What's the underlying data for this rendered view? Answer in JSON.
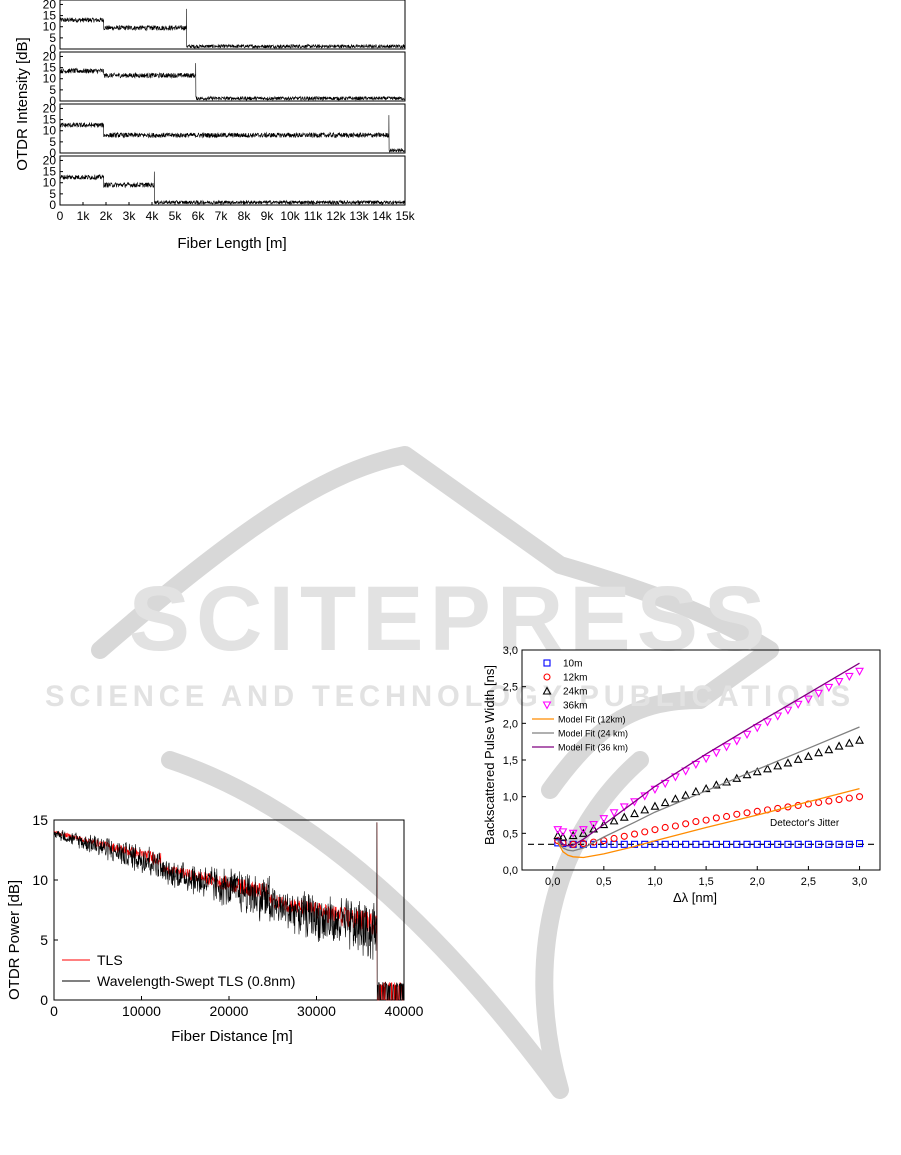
{
  "watermark": {
    "title": "SCITEPRESS",
    "subtitle": "SCIENCE AND TECHNOLOGY PUBLICATIONS"
  },
  "chart_data": [
    {
      "type": "line",
      "subplots": 4,
      "xlabel": "Fiber Length [m]",
      "ylabel": "OTDR Intensity [dB]",
      "xlim": [
        0,
        15000
      ],
      "ylim": [
        0,
        22
      ],
      "x_ticks": [
        0,
        1000,
        2000,
        3000,
        4000,
        5000,
        6000,
        7000,
        8000,
        9000,
        10000,
        11000,
        12000,
        13000,
        14000,
        15000
      ],
      "x_tick_labels": [
        "0",
        "1k",
        "2k",
        "3k",
        "4k",
        "5k",
        "6k",
        "7k",
        "8k",
        "9k",
        "10k",
        "11k",
        "12k",
        "13k",
        "14k",
        "15k"
      ],
      "y_ticks": [
        0,
        5,
        10,
        15,
        20
      ],
      "y_tick_labels": [
        "0",
        "5",
        "10",
        "15",
        "20"
      ],
      "traces": [
        {
          "segments": [
            [
              0,
              1900,
              13
            ],
            [
              1900,
              5500,
              9.5
            ]
          ],
          "end": 5500,
          "spike": 18,
          "noise_floor": 1
        },
        {
          "segments": [
            [
              0,
              1900,
              13.5
            ],
            [
              1900,
              5900,
              11.5
            ]
          ],
          "end": 5900,
          "spike": 17,
          "noise_floor": 1
        },
        {
          "segments": [
            [
              0,
              1900,
              12.5
            ],
            [
              1900,
              14300,
              8
            ]
          ],
          "end": 14300,
          "spike": 17,
          "noise_floor": 1
        },
        {
          "segments": [
            [
              0,
              1900,
              12.5
            ],
            [
              1900,
              4100,
              9
            ]
          ],
          "end": 4100,
          "spike": 15,
          "noise_floor": 1
        }
      ]
    },
    {
      "type": "line",
      "xlabel": "Fiber Distance [m]",
      "ylabel": "OTDR Power [dB]",
      "xlim": [
        0,
        40000
      ],
      "ylim": [
        0,
        15
      ],
      "x_ticks": [
        0,
        10000,
        20000,
        30000,
        40000
      ],
      "x_tick_labels": [
        "0",
        "10000",
        "20000",
        "30000",
        "40000"
      ],
      "y_ticks": [
        0,
        5,
        10,
        15
      ],
      "y_tick_labels": [
        "0",
        "5",
        "10",
        "15"
      ],
      "legend_position": "bottom-left",
      "series": [
        {
          "name": "TLS",
          "color": "#ff0000"
        },
        {
          "name": "Wavelength-Swept TLS (0.8nm)",
          "color": "#000000"
        }
      ],
      "fiber_spans": [
        {
          "x": [
            0,
            12200
          ],
          "y": [
            14,
            11.7
          ]
        },
        {
          "x": [
            12200,
            24600
          ],
          "y": [
            11,
            8.9
          ]
        },
        {
          "x": [
            24600,
            36900
          ],
          "y": [
            8.3,
            6.3
          ]
        }
      ],
      "end_spike": {
        "x": 36900,
        "y": 14.8
      },
      "noise_floor": 1.1
    },
    {
      "type": "scatter",
      "xlabel": "Δλ [nm]",
      "ylabel": "Backscattered Pulse Width [ns]",
      "xlim": [
        -0.3,
        3.2
      ],
      "ylim": [
        0.0,
        3.0
      ],
      "x_ticks": [
        0,
        0.5,
        1,
        1.5,
        2,
        2.5,
        3
      ],
      "x_tick_labels": [
        "0,0",
        "0,5",
        "1,0",
        "1,5",
        "2,0",
        "2,5",
        "3,0"
      ],
      "y_ticks": [
        0,
        0.5,
        1,
        1.5,
        2,
        2.5,
        3
      ],
      "y_tick_labels": [
        "0,0",
        "0,5",
        "1,0",
        "1,5",
        "2,0",
        "2,5",
        "3,0"
      ],
      "legend_position": "top-left",
      "annotation": "Detector's Jitter",
      "jitter_level": 0.35,
      "series": [
        {
          "name": "10m",
          "marker": "square",
          "color": "#0000ff",
          "x": [
            0.05,
            0.1,
            0.2,
            0.3,
            0.4,
            0.5,
            0.6,
            0.7,
            0.8,
            0.9,
            1.0,
            1.1,
            1.2,
            1.3,
            1.4,
            1.5,
            1.6,
            1.7,
            1.8,
            1.9,
            2.0,
            2.1,
            2.2,
            2.3,
            2.4,
            2.5,
            2.6,
            2.7,
            2.8,
            2.9,
            3.0
          ],
          "y": [
            0.37,
            0.36,
            0.35,
            0.35,
            0.35,
            0.35,
            0.35,
            0.35,
            0.35,
            0.35,
            0.35,
            0.35,
            0.35,
            0.35,
            0.35,
            0.35,
            0.35,
            0.35,
            0.35,
            0.35,
            0.35,
            0.35,
            0.35,
            0.35,
            0.35,
            0.35,
            0.35,
            0.35,
            0.35,
            0.35,
            0.36
          ]
        },
        {
          "name": "12km",
          "marker": "circle",
          "color": "#ff0000",
          "x": [
            0.05,
            0.1,
            0.2,
            0.3,
            0.4,
            0.5,
            0.6,
            0.7,
            0.8,
            0.9,
            1.0,
            1.1,
            1.2,
            1.3,
            1.4,
            1.5,
            1.6,
            1.7,
            1.8,
            1.9,
            2.0,
            2.1,
            2.2,
            2.3,
            2.4,
            2.5,
            2.6,
            2.7,
            2.8,
            2.9,
            3.0
          ],
          "y": [
            0.4,
            0.37,
            0.35,
            0.36,
            0.38,
            0.4,
            0.43,
            0.46,
            0.49,
            0.52,
            0.55,
            0.58,
            0.6,
            0.63,
            0.66,
            0.68,
            0.71,
            0.73,
            0.76,
            0.78,
            0.8,
            0.82,
            0.84,
            0.86,
            0.88,
            0.9,
            0.92,
            0.94,
            0.96,
            0.98,
            1.0
          ]
        },
        {
          "name": "24km",
          "marker": "triangle-up",
          "color": "#000000",
          "x": [
            0.05,
            0.1,
            0.2,
            0.3,
            0.4,
            0.5,
            0.6,
            0.7,
            0.8,
            0.9,
            1.0,
            1.1,
            1.2,
            1.3,
            1.4,
            1.5,
            1.6,
            1.7,
            1.8,
            1.9,
            2.0,
            2.1,
            2.2,
            2.3,
            2.4,
            2.5,
            2.6,
            2.7,
            2.8,
            2.9,
            3.0
          ],
          "y": [
            0.47,
            0.45,
            0.47,
            0.5,
            0.56,
            0.62,
            0.67,
            0.72,
            0.77,
            0.82,
            0.87,
            0.92,
            0.97,
            1.02,
            1.07,
            1.11,
            1.16,
            1.2,
            1.25,
            1.3,
            1.34,
            1.38,
            1.42,
            1.46,
            1.51,
            1.55,
            1.6,
            1.64,
            1.69,
            1.73,
            1.77
          ]
        },
        {
          "name": "36km",
          "marker": "triangle-down",
          "color": "#ff00ff",
          "x": [
            0.05,
            0.1,
            0.2,
            0.3,
            0.4,
            0.5,
            0.6,
            0.7,
            0.8,
            0.9,
            1.0,
            1.1,
            1.2,
            1.3,
            1.4,
            1.5,
            1.6,
            1.7,
            1.8,
            1.9,
            2.0,
            2.1,
            2.2,
            2.3,
            2.4,
            2.5,
            2.6,
            2.7,
            2.8,
            2.9,
            3.0
          ],
          "y": [
            0.55,
            0.52,
            0.5,
            0.55,
            0.62,
            0.7,
            0.78,
            0.86,
            0.93,
            1.01,
            1.1,
            1.18,
            1.27,
            1.35,
            1.44,
            1.52,
            1.6,
            1.68,
            1.76,
            1.85,
            1.94,
            2.02,
            2.1,
            2.18,
            2.26,
            2.33,
            2.41,
            2.49,
            2.57,
            2.64,
            2.71
          ]
        },
        {
          "name": "Model Fit (12km)",
          "marker": "line",
          "color": "#ff8c00",
          "x": [
            0.05,
            0.1,
            0.15,
            0.2,
            0.3,
            0.5,
            0.8,
            1.0,
            1.5,
            2.0,
            2.5,
            3.0
          ],
          "y": [
            0.38,
            0.25,
            0.2,
            0.18,
            0.17,
            0.22,
            0.32,
            0.4,
            0.58,
            0.75,
            0.93,
            1.11
          ]
        },
        {
          "name": "Model Fit (24 km)",
          "marker": "line",
          "color": "#808080",
          "x": [
            0.05,
            0.1,
            0.15,
            0.2,
            0.3,
            0.5,
            0.8,
            1.0,
            1.5,
            2.0,
            2.5,
            3.0
          ],
          "y": [
            0.4,
            0.3,
            0.27,
            0.26,
            0.3,
            0.45,
            0.65,
            0.79,
            1.08,
            1.37,
            1.66,
            1.95
          ]
        },
        {
          "name": "Model Fit (36 km)",
          "marker": "line",
          "color": "#800080",
          "x": [
            0.05,
            0.1,
            0.15,
            0.2,
            0.3,
            0.5,
            0.8,
            1.0,
            1.5,
            2.0,
            2.5,
            3.0
          ],
          "y": [
            0.45,
            0.35,
            0.33,
            0.34,
            0.42,
            0.62,
            0.93,
            1.14,
            1.58,
            2.0,
            2.41,
            2.82
          ]
        }
      ]
    }
  ]
}
